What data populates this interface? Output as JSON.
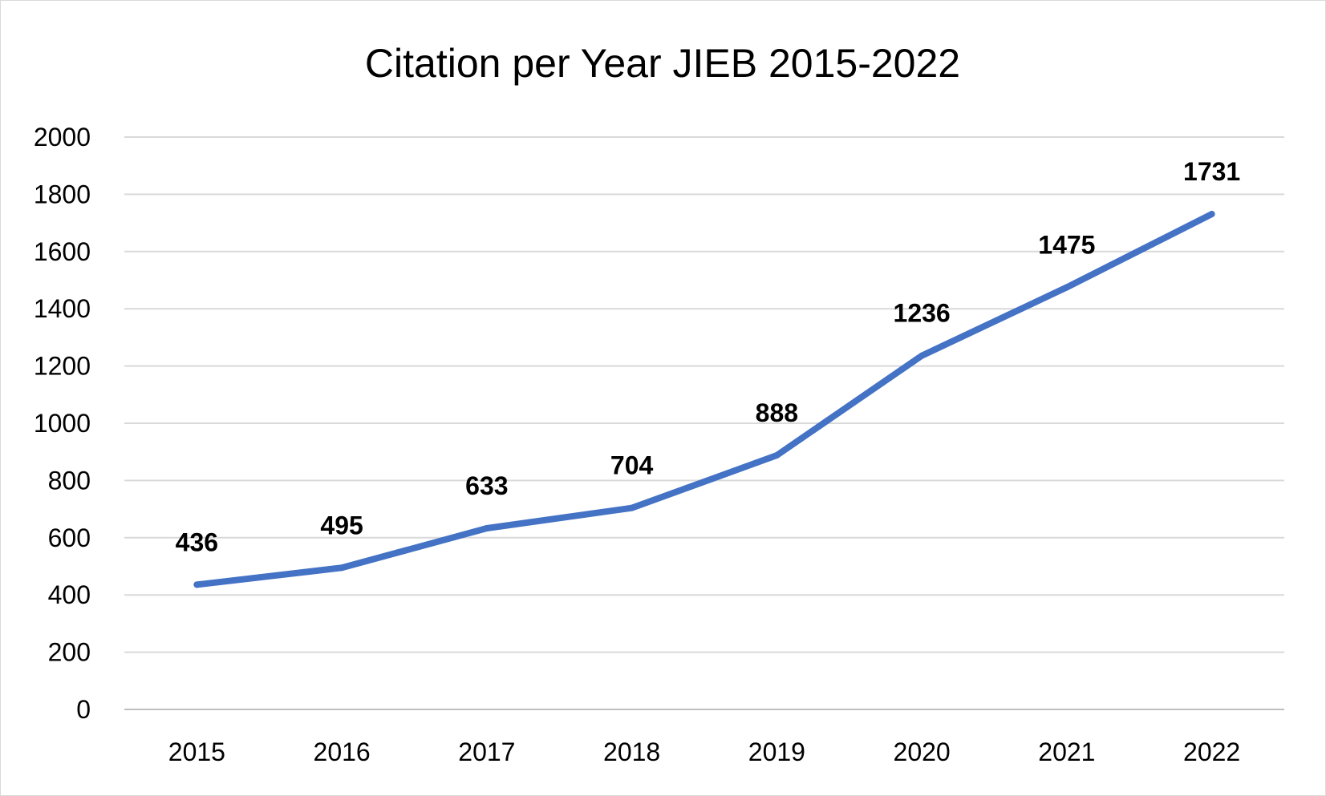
{
  "chart_data": {
    "type": "line",
    "title": "Citation per Year JIEB 2015-2022",
    "categories": [
      "2015",
      "2016",
      "2017",
      "2018",
      "2019",
      "2020",
      "2021",
      "2022"
    ],
    "series": [
      {
        "values": [
          436,
          495,
          633,
          704,
          888,
          1236,
          1475,
          1731
        ],
        "color": "#4472c4"
      }
    ],
    "ylim": [
      0,
      2000
    ],
    "yticks": [
      "0",
      "200",
      "400",
      "600",
      "800",
      "1000",
      "1200",
      "1400",
      "1600",
      "1800",
      "2000"
    ],
    "grid": true,
    "legend": "none",
    "data_labels": [
      "436",
      "495",
      "633",
      "704",
      "888",
      "1236",
      "1475",
      "1731"
    ]
  }
}
